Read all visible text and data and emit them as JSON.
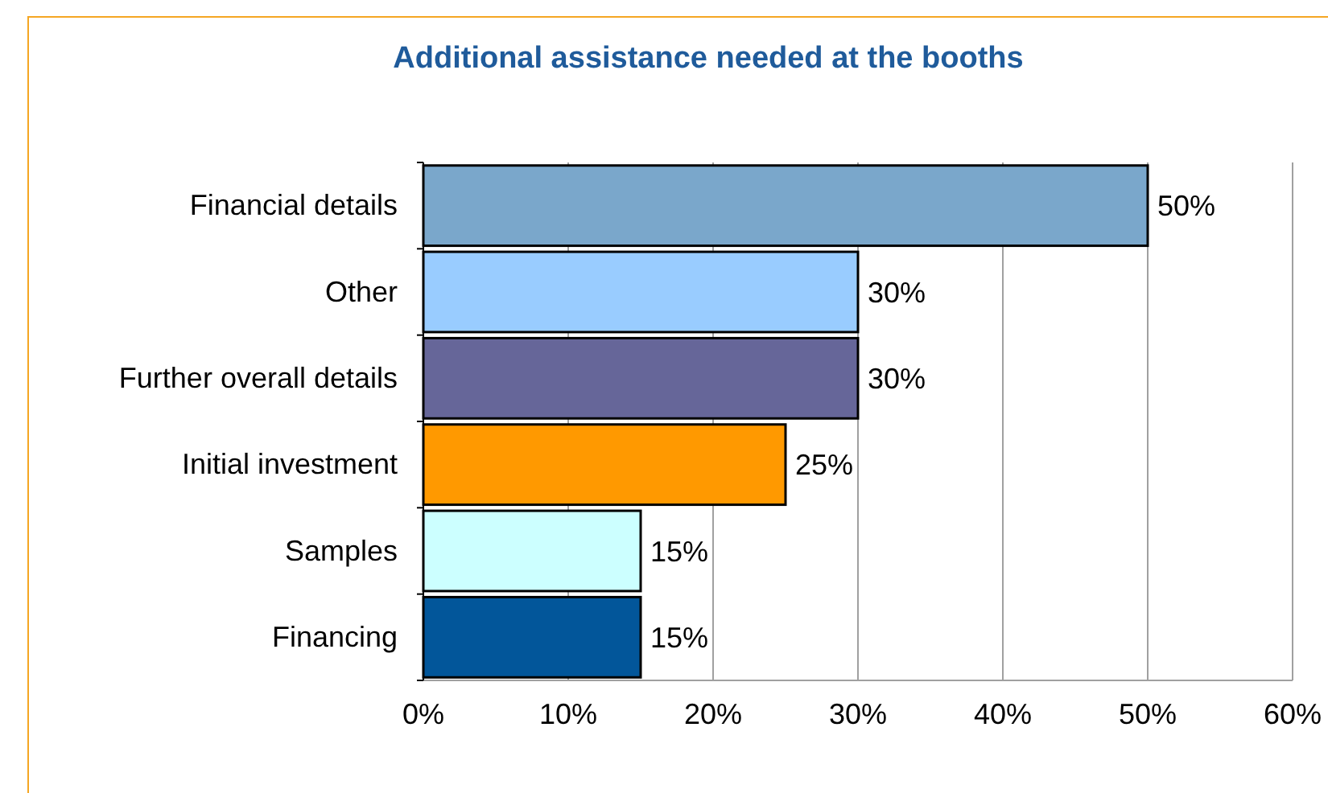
{
  "chart_data": {
    "type": "bar",
    "orientation": "horizontal",
    "title": "Additional assistance needed at the booths",
    "categories": [
      "Financial details",
      "Other",
      "Further overall details",
      "Initial investment",
      "Samples",
      "Financing"
    ],
    "values": [
      50,
      30,
      30,
      25,
      15,
      15
    ],
    "colors": [
      "#7aa7cb",
      "#99ccff",
      "#666699",
      "#ff9900",
      "#ccffff",
      "#02569a"
    ],
    "value_labels": [
      "50%",
      "30%",
      "30%",
      "25%",
      "15%",
      "15%"
    ],
    "xlim": [
      0,
      60
    ],
    "xticks": [
      {
        "value": 0,
        "label": "0%"
      },
      {
        "value": 10,
        "label": "10%"
      },
      {
        "value": 20,
        "label": "20%"
      },
      {
        "value": 30,
        "label": "30%"
      },
      {
        "value": 40,
        "label": "40%"
      },
      {
        "value": 50,
        "label": "50%"
      },
      {
        "value": 60,
        "label": "60%"
      }
    ],
    "grid": "x"
  }
}
